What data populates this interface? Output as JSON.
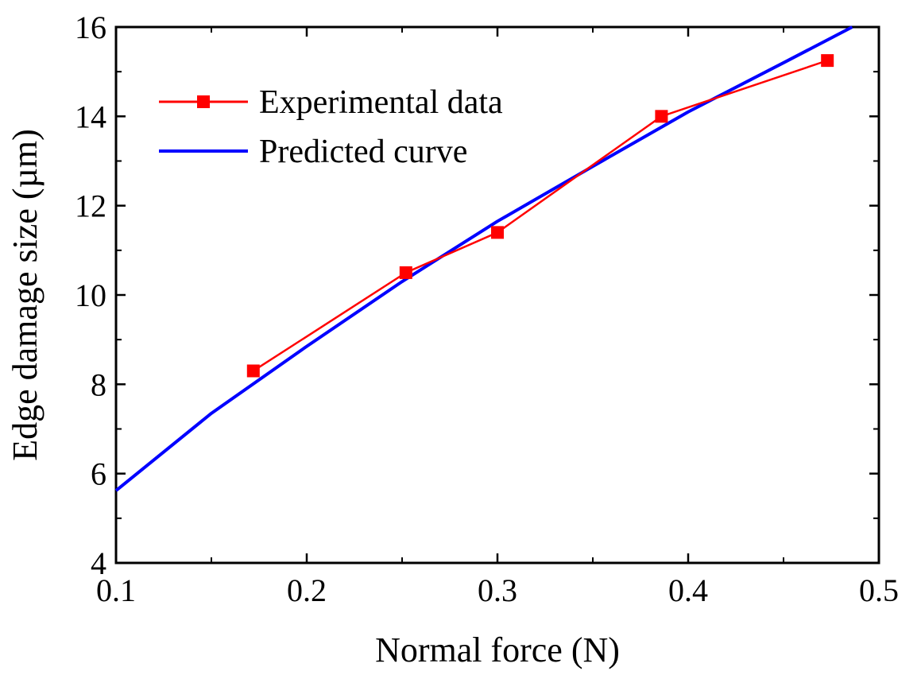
{
  "chart_data": {
    "type": "line",
    "xlabel": "Normal force (N)",
    "ylabel": "Edge damage size (µm)",
    "xlim": [
      0.1,
      0.5
    ],
    "ylim": [
      4,
      16
    ],
    "x_ticks": [
      "0.1",
      "0.2",
      "0.3",
      "0.4",
      "0.5"
    ],
    "y_ticks": [
      "4",
      "6",
      "8",
      "10",
      "12",
      "14",
      "16"
    ],
    "series": [
      {
        "name": "Experimental data",
        "style": "line-with-square-markers",
        "color": "#ff0000",
        "x": [
          0.172,
          0.252,
          0.3,
          0.386,
          0.473
        ],
        "y": [
          8.3,
          10.5,
          11.4,
          14.0,
          15.25
        ]
      },
      {
        "name": "Predicted curve",
        "style": "line",
        "color": "#0000ff",
        "x": [
          0.1,
          0.15,
          0.2,
          0.25,
          0.3,
          0.35,
          0.4,
          0.45,
          0.486
        ],
        "y": [
          5.62,
          7.35,
          8.85,
          10.3,
          11.65,
          12.88,
          14.1,
          15.2,
          16.0
        ]
      }
    ],
    "legend": {
      "position": "top-left"
    },
    "grid": false
  }
}
